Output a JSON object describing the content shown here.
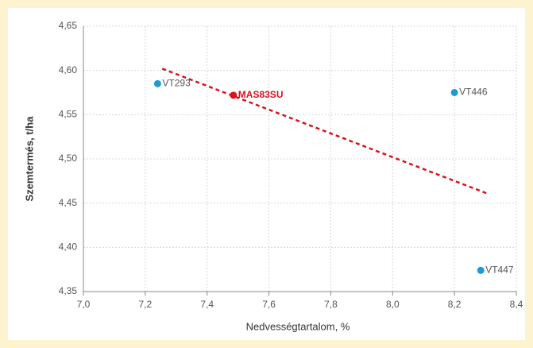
{
  "chart_data": {
    "type": "scatter",
    "xlabel": "Nedvességtartalom, %",
    "ylabel": "Szemtermés, t/ha",
    "xlim": [
      7.0,
      8.4
    ],
    "ylim": [
      4.35,
      4.65
    ],
    "xticks": [
      {
        "value": 7.0,
        "label": "7,0"
      },
      {
        "value": 7.2,
        "label": "7,2"
      },
      {
        "value": 7.4,
        "label": "7,4"
      },
      {
        "value": 7.6,
        "label": "7,6"
      },
      {
        "value": 7.8,
        "label": "7,8"
      },
      {
        "value": 8.0,
        "label": "8,0"
      },
      {
        "value": 8.2,
        "label": "8,2"
      },
      {
        "value": 8.4,
        "label": "8,4"
      }
    ],
    "yticks": [
      {
        "value": 4.35,
        "label": "4,35"
      },
      {
        "value": 4.4,
        "label": "4,40"
      },
      {
        "value": 4.45,
        "label": "4,45"
      },
      {
        "value": 4.5,
        "label": "4,50"
      },
      {
        "value": 4.55,
        "label": "4,55"
      },
      {
        "value": 4.6,
        "label": "4,60"
      },
      {
        "value": 4.65,
        "label": "4,65"
      }
    ],
    "grid": true,
    "points": [
      {
        "name": "VT293",
        "x": 7.24,
        "y": 4.585,
        "color": "#1a9ad6"
      },
      {
        "name": "MAS83SU",
        "x": 7.485,
        "y": 4.572,
        "color": "#d7141e",
        "highlight": true
      },
      {
        "name": "VT446",
        "x": 8.2,
        "y": 4.575,
        "color": "#1a9ad6"
      },
      {
        "name": "VT447",
        "x": 8.285,
        "y": 4.374,
        "color": "#1a9ad6"
      }
    ],
    "trendline": {
      "x": [
        7.255,
        8.305
      ],
      "y": [
        4.602,
        4.461
      ],
      "color": "#d7141e"
    }
  }
}
